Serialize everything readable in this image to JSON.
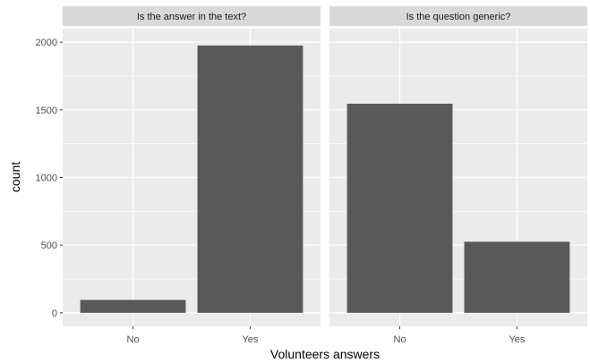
{
  "chart_data": {
    "type": "bar",
    "xlabel": "Volunteers answers",
    "ylabel": "count",
    "ylim": [
      -100,
      2100
    ],
    "yticks": [
      0,
      500,
      1000,
      1500,
      2000
    ],
    "grid": true,
    "colors": {
      "panel_bg": "#ebebeb",
      "strip_bg": "#d9d9d9",
      "bar": "#595959",
      "grid": "#ffffff"
    },
    "panels": [
      {
        "title": "Is the answer in the text?",
        "categories": [
          "No",
          "Yes"
        ],
        "values": [
          95,
          1975
        ]
      },
      {
        "title": "Is the question generic?",
        "categories": [
          "No",
          "Yes"
        ],
        "values": [
          1545,
          525
        ]
      }
    ]
  }
}
